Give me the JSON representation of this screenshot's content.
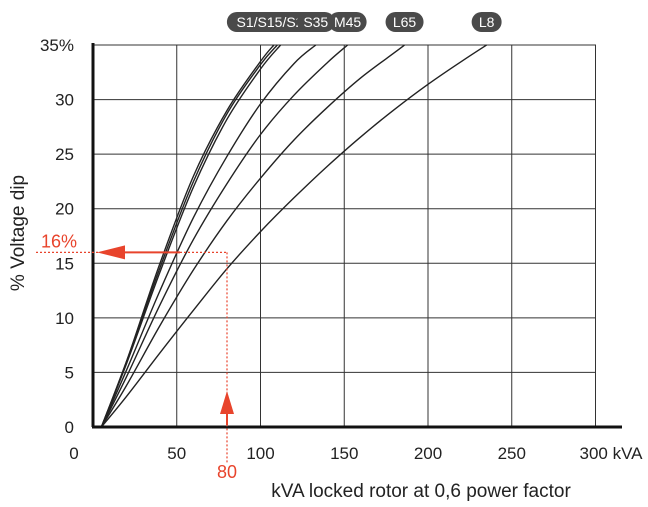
{
  "chart_data": {
    "type": "line",
    "title": "",
    "xlabel": "kVA locked rotor at 0,6 power factor",
    "ylabel": "% Voltage dip",
    "xlim": [
      0,
      300
    ],
    "ylim": [
      0,
      35
    ],
    "x_ticks": [
      {
        "value": 0,
        "label": "0"
      },
      {
        "value": 50,
        "label": "50"
      },
      {
        "value": 100,
        "label": "100"
      },
      {
        "value": 150,
        "label": "150"
      },
      {
        "value": 200,
        "label": "200"
      },
      {
        "value": 250,
        "label": "250"
      },
      {
        "value": 300,
        "label": "300 kVA"
      }
    ],
    "y_ticks": [
      {
        "value": 0,
        "label": "0"
      },
      {
        "value": 5,
        "label": "5"
      },
      {
        "value": 10,
        "label": "10"
      },
      {
        "value": 15,
        "label": "15"
      },
      {
        "value": 20,
        "label": "20"
      },
      {
        "value": 25,
        "label": "25"
      },
      {
        "value": 30,
        "label": "30"
      },
      {
        "value": 35,
        "label": "35%"
      }
    ],
    "grid": true,
    "series": [
      {
        "name": "S1/S15/S25",
        "points": [
          [
            5,
            0
          ],
          [
            20,
            6
          ],
          [
            40,
            15
          ],
          [
            60,
            23
          ],
          [
            80,
            29
          ],
          [
            100,
            33.5
          ],
          [
            108,
            35
          ]
        ]
      },
      {
        "name": "",
        "points": [
          [
            5,
            0
          ],
          [
            20,
            6
          ],
          [
            40,
            14.6
          ],
          [
            60,
            22.5
          ],
          [
            80,
            28.7
          ],
          [
            100,
            33.2
          ],
          [
            110,
            35
          ]
        ]
      },
      {
        "name": "",
        "points": [
          [
            5,
            0
          ],
          [
            20,
            5.8
          ],
          [
            40,
            14.2
          ],
          [
            60,
            22
          ],
          [
            80,
            28.2
          ],
          [
            100,
            32.8
          ],
          [
            112,
            35
          ]
        ]
      },
      {
        "name": "S35",
        "points": [
          [
            5,
            0
          ],
          [
            20,
            5.2
          ],
          [
            40,
            12.5
          ],
          [
            60,
            19.2
          ],
          [
            80,
            24.8
          ],
          [
            100,
            29.6
          ],
          [
            120,
            33.3
          ],
          [
            133,
            35
          ]
        ]
      },
      {
        "name": "M45",
        "points": [
          [
            5,
            0
          ],
          [
            20,
            4.6
          ],
          [
            40,
            11.2
          ],
          [
            60,
            17.2
          ],
          [
            80,
            22.3
          ],
          [
            100,
            26.8
          ],
          [
            120,
            30.4
          ],
          [
            140,
            33.4
          ],
          [
            152,
            35
          ]
        ]
      },
      {
        "name": "L65",
        "points": [
          [
            5,
            0
          ],
          [
            20,
            3.8
          ],
          [
            40,
            9.3
          ],
          [
            60,
            14.4
          ],
          [
            80,
            18.9
          ],
          [
            100,
            22.8
          ],
          [
            120,
            26.3
          ],
          [
            140,
            29.3
          ],
          [
            160,
            32
          ],
          [
            180,
            34.3
          ],
          [
            186,
            35
          ]
        ]
      },
      {
        "name": "L8",
        "points": [
          [
            5,
            0
          ],
          [
            20,
            2.8
          ],
          [
            40,
            6.8
          ],
          [
            60,
            10.7
          ],
          [
            80,
            14.5
          ],
          [
            100,
            17.9
          ],
          [
            120,
            21
          ],
          [
            140,
            23.9
          ],
          [
            160,
            26.6
          ],
          [
            180,
            29.1
          ],
          [
            200,
            31.4
          ],
          [
            220,
            33.5
          ],
          [
            235,
            35
          ]
        ]
      }
    ],
    "series_color": "#222222",
    "annotations": {
      "color": "#e8442c",
      "example_x": 80,
      "example_y": 16,
      "x_label": "80",
      "y_label": "16%"
    }
  }
}
